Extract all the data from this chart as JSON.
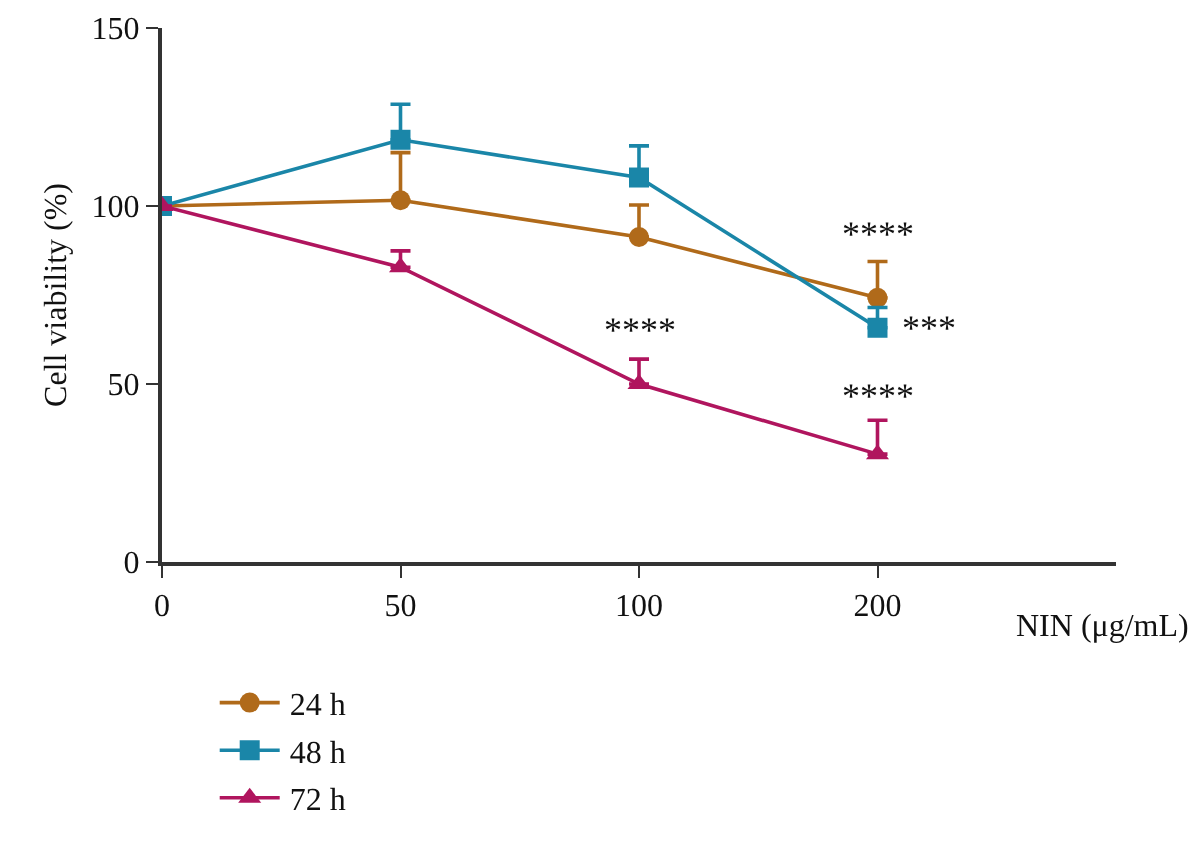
{
  "chart_data": {
    "type": "line",
    "xlabel": "NIN (μg/mL)",
    "ylabel": "Cell viability (%)",
    "categories": [
      "0",
      "50",
      "100",
      "200"
    ],
    "series": [
      {
        "name": "24 h",
        "color": "#b06a1a",
        "marker": "circle",
        "values": [
          100,
          101.6,
          91.3,
          74.2
        ],
        "errors": [
          null,
          [
            101.6,
            115
          ],
          [
            91.3,
            100.3
          ],
          [
            74.2,
            84.4
          ]
        ]
      },
      {
        "name": "48 h",
        "color": "#1a86a8",
        "marker": "square",
        "values": [
          100,
          118.6,
          108,
          65.8
        ],
        "errors": [
          null,
          [
            118.6,
            128.6
          ],
          [
            108,
            116.9
          ],
          [
            65.8,
            71.5
          ]
        ]
      },
      {
        "name": "72 h",
        "color": "#b0155e",
        "marker": "triangle",
        "values": [
          100,
          82.8,
          50,
          30.3
        ],
        "errors": [
          null,
          [
            82.8,
            87.4
          ],
          [
            50,
            57
          ],
          [
            30.3,
            39.8
          ]
        ]
      }
    ],
    "annotations": [
      "****",
      {
        "text": "***",
        "x": "200",
        "y": 65.8
      },
      "****",
      "****"
    ],
    "ylim": [
      0,
      150
    ],
    "yticks": [
      0,
      50,
      100,
      150
    ],
    "grid": false,
    "legend": "bottom"
  }
}
